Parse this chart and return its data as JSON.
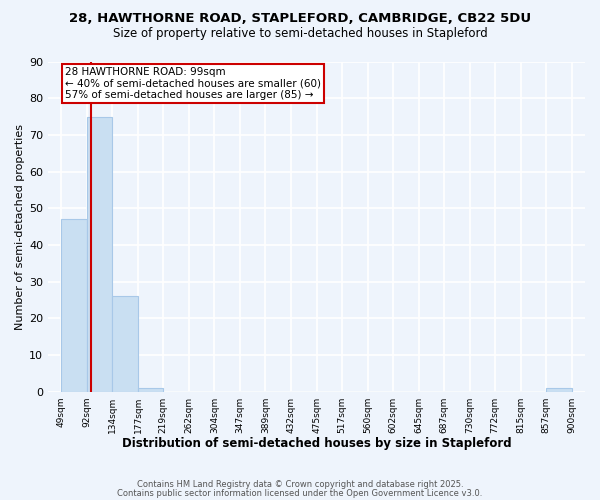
{
  "title1": "28, HAWTHORNE ROAD, STAPLEFORD, CAMBRIDGE, CB22 5DU",
  "title2": "Size of property relative to semi-detached houses in Stapleford",
  "xlabel": "Distribution of semi-detached houses by size in Stapleford",
  "ylabel": "Number of semi-detached properties",
  "bar_edges": [
    49,
    92,
    134,
    177,
    219,
    262,
    304,
    347,
    389,
    432,
    475,
    517,
    560,
    602,
    645,
    687,
    730,
    772,
    815,
    857,
    900
  ],
  "bar_heights": [
    47,
    75,
    26,
    1,
    0,
    0,
    0,
    0,
    0,
    0,
    0,
    0,
    0,
    0,
    0,
    0,
    0,
    0,
    0,
    1
  ],
  "bar_color": "#c9dff2",
  "bar_edge_color": "#a8c8e8",
  "property_line_x": 99,
  "property_line_color": "#cc0000",
  "annotation_title": "28 HAWTHORNE ROAD: 99sqm",
  "annotation_line1": "← 40% of semi-detached houses are smaller (60)",
  "annotation_line2": "57% of semi-detached houses are larger (85) →",
  "annotation_box_color": "#cc0000",
  "ylim": [
    0,
    90
  ],
  "yticks": [
    0,
    10,
    20,
    30,
    40,
    50,
    60,
    70,
    80,
    90
  ],
  "tick_labels": [
    "49sqm",
    "92sqm",
    "134sqm",
    "177sqm",
    "219sqm",
    "262sqm",
    "304sqm",
    "347sqm",
    "389sqm",
    "432sqm",
    "475sqm",
    "517sqm",
    "560sqm",
    "602sqm",
    "645sqm",
    "687sqm",
    "730sqm",
    "772sqm",
    "815sqm",
    "857sqm",
    "900sqm"
  ],
  "footer1": "Contains HM Land Registry data © Crown copyright and database right 2025.",
  "footer2": "Contains public sector information licensed under the Open Government Licence v3.0.",
  "bg_color": "#eef4fc",
  "grid_color": "#ffffff",
  "xlim_left": 27,
  "xlim_right": 922
}
